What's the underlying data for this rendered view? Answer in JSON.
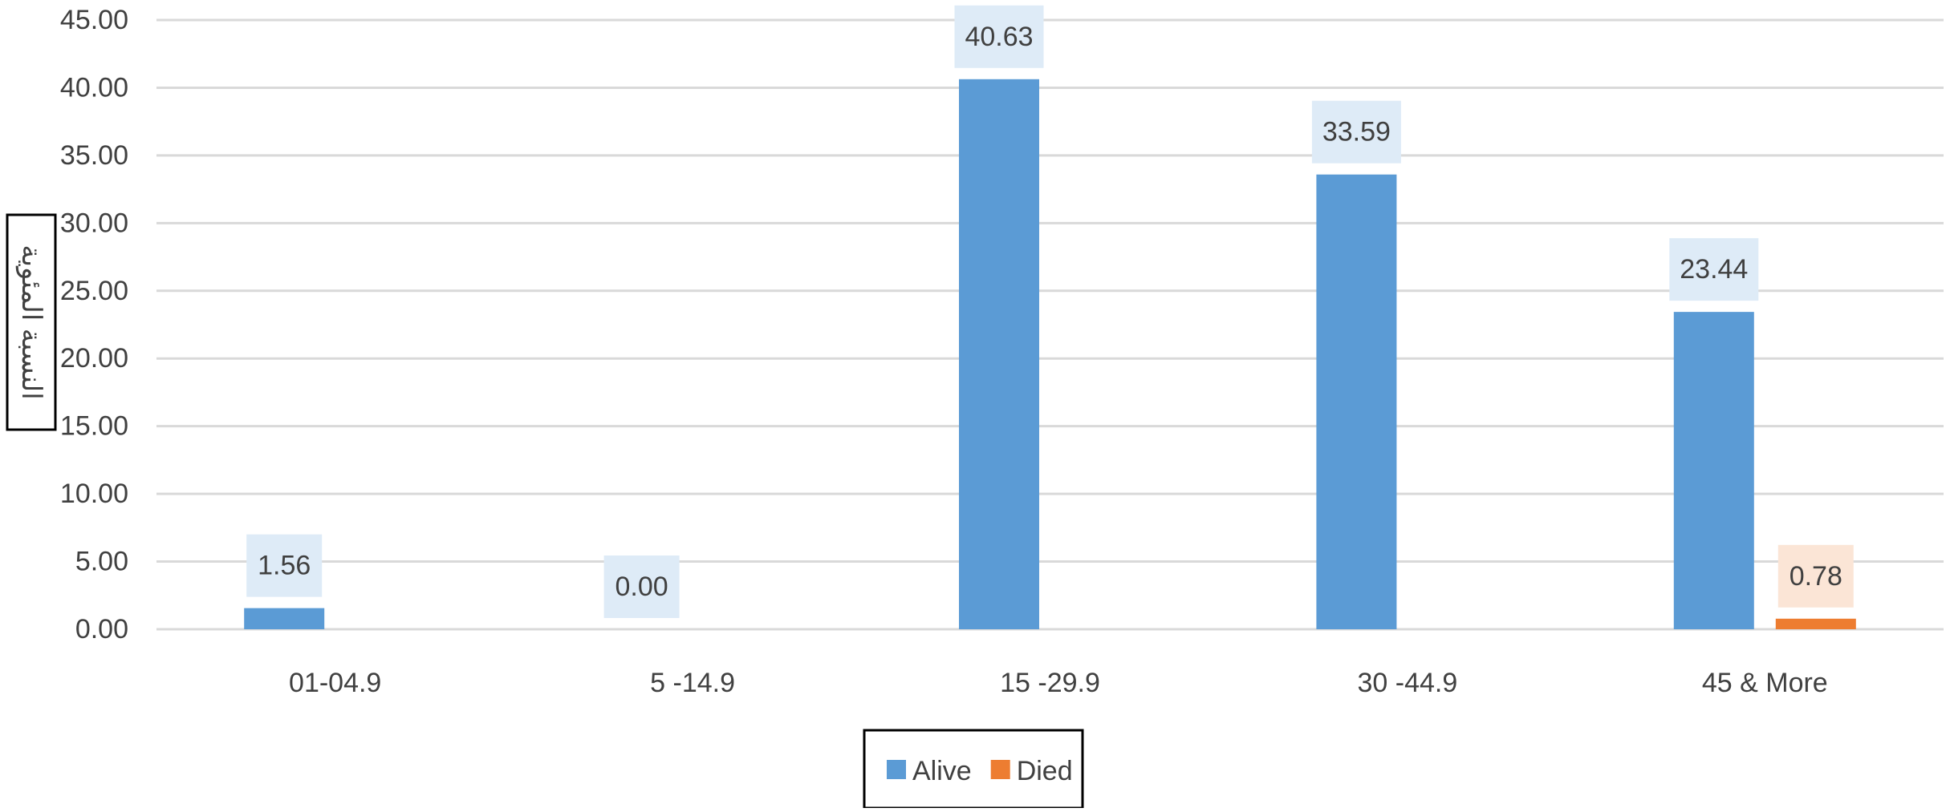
{
  "chart_data": {
    "type": "bar",
    "title": "",
    "xlabel": "",
    "ylabel": "النسبة المئوية",
    "ylim": [
      0,
      45
    ],
    "ytick_step": 5,
    "ytick_labels": [
      "0.00",
      "5.00",
      "10.00",
      "15.00",
      "20.00",
      "25.00",
      "30.00",
      "35.00",
      "40.00",
      "45.00"
    ],
    "categories": [
      "01-04.9",
      "5 -14.9",
      "15 -29.9",
      "30 -44.9",
      "45 & More"
    ],
    "series": [
      {
        "name": "Alive",
        "color": "#5b9bd5",
        "label_bg": "#deebf7",
        "values": [
          1.56,
          0.0,
          40.63,
          33.59,
          23.44
        ],
        "labels": [
          "1.56",
          "0.00",
          "40.63",
          "33.59",
          "23.44"
        ]
      },
      {
        "name": "Died",
        "color": "#ed7d31",
        "label_bg": "#fbe5d6",
        "values": [
          null,
          null,
          null,
          null,
          0.78
        ],
        "labels": [
          null,
          null,
          null,
          null,
          "0.78"
        ]
      }
    ],
    "legend": {
      "position": "bottom",
      "boxed": true
    },
    "grid": true,
    "gridline_color": "#d9d9d9"
  }
}
